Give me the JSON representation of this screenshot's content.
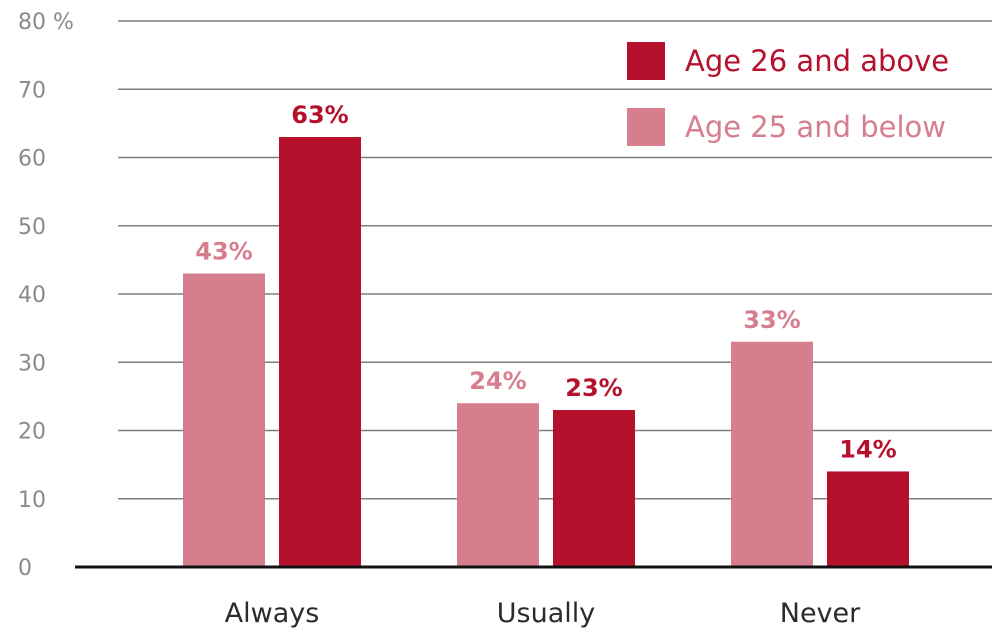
{
  "chart_data": {
    "type": "bar",
    "categories": [
      "Always",
      "Usually",
      "Never"
    ],
    "series": [
      {
        "name": "Age 25 and below",
        "values": [
          43,
          24,
          33
        ],
        "labels": [
          "43%",
          "24%",
          "33%"
        ],
        "color": "#d77e8e"
      },
      {
        "name": "Age 26 and above",
        "values": [
          63,
          23,
          14
        ],
        "labels": [
          "63%",
          "23%",
          "14%"
        ],
        "color": "#b5102c"
      }
    ],
    "legend_order": [
      1,
      0
    ],
    "ylim": [
      0,
      80
    ],
    "yticks": [
      0,
      10,
      20,
      30,
      40,
      50,
      60,
      70,
      80
    ],
    "ytick_labels": [
      "0",
      "10",
      "20",
      "30",
      "40",
      "50",
      "60",
      "70",
      "80 %"
    ],
    "grid": true,
    "legend_position": "top-right",
    "title": "",
    "xlabel": "",
    "ylabel": ""
  }
}
